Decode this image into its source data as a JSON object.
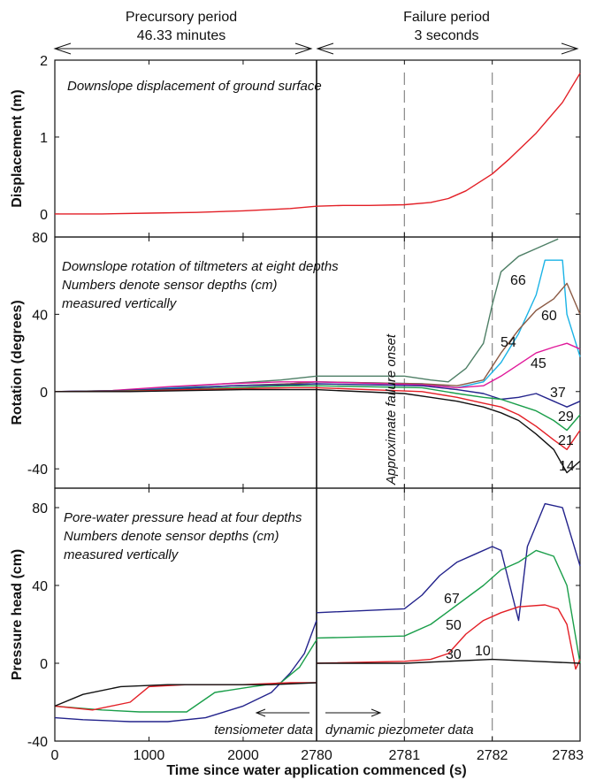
{
  "header": {
    "left_title": "Precursory period",
    "left_sub": "46.33 minutes",
    "right_title": "Failure period",
    "right_sub": "3 seconds"
  },
  "xlabel": "Time since water application commenced (s)",
  "colors": {
    "red": "#e31f26",
    "black": "#111111",
    "blue": "#23238c",
    "green": "#1a9e4a",
    "teal": "#4e7f66",
    "brown": "#8b5a44",
    "cyan": "#1ab3e6",
    "magenta": "#e0199a",
    "mid_blue": "#2c5fa8",
    "gray": "#888888",
    "grid": "#999999"
  },
  "chart_data": [
    {
      "type": "line",
      "title": "Downslope displacement of ground surface",
      "ylabel": "Displacement (m)",
      "ylim": [
        -0.3,
        2
      ],
      "yticks": [
        "2",
        "1",
        "0"
      ],
      "x_precursory": {
        "ticks": [
          "0",
          "1000",
          "2000",
          "2780"
        ],
        "range": [
          0,
          2780
        ]
      },
      "x_failure": {
        "ticks": [
          "2780",
          "2781",
          "2782",
          "2783"
        ],
        "range": [
          2780,
          2783
        ]
      },
      "series": [
        {
          "color": "red",
          "pre": [
            [
              0,
              0.0
            ],
            [
              500,
              0.0
            ],
            [
              1000,
              0.01
            ],
            [
              1500,
              0.02
            ],
            [
              2000,
              0.04
            ],
            [
              2500,
              0.07
            ],
            [
              2780,
              0.1
            ]
          ],
          "fail": [
            [
              2780,
              0.1
            ],
            [
              2780.3,
              0.11
            ],
            [
              2780.6,
              0.11
            ],
            [
              2781,
              0.12
            ],
            [
              2781.3,
              0.15
            ],
            [
              2781.5,
              0.2
            ],
            [
              2781.7,
              0.3
            ],
            [
              2782,
              0.52
            ],
            [
              2782.2,
              0.72
            ],
            [
              2782.5,
              1.05
            ],
            [
              2782.8,
              1.45
            ],
            [
              2783,
              1.83
            ]
          ]
        }
      ]
    },
    {
      "type": "line",
      "title_lines": [
        "Downslope rotation of tiltmeters at eight depths",
        "Numbers denote sensor depths (cm)",
        "measured vertically"
      ],
      "annotation": "Approximate failure onset",
      "ylabel": "Rotation (degrees)",
      "ylim": [
        -50,
        80
      ],
      "yticks": [
        "80",
        "40",
        "0",
        "-40"
      ],
      "x_precursory": {
        "ticks": [
          "0",
          "1000",
          "2000",
          "2780"
        ],
        "range": [
          0,
          2780
        ]
      },
      "x_failure": {
        "ticks": [
          "2780",
          "2781",
          "2782",
          "2783"
        ],
        "range": [
          2780,
          2783
        ]
      },
      "series": [
        {
          "name": "66",
          "color": "teal",
          "pre": [
            [
              0,
              0
            ],
            [
              600,
              0.5
            ],
            [
              1200,
              2
            ],
            [
              1800,
              4
            ],
            [
              2400,
              6
            ],
            [
              2780,
              8
            ]
          ],
          "fail": [
            [
              2780,
              8
            ],
            [
              2781,
              8
            ],
            [
              2781.3,
              6
            ],
            [
              2781.5,
              5
            ],
            [
              2781.7,
              12
            ],
            [
              2781.9,
              25
            ],
            [
              2782.0,
              45
            ],
            [
              2782.1,
              62
            ],
            [
              2782.3,
              70
            ],
            [
              2782.5,
              74
            ],
            [
              2782.7,
              78
            ],
            [
              2782.75,
              79
            ]
          ]
        },
        {
          "name": "54",
          "color": "cyan",
          "pre": [
            [
              0,
              0
            ],
            [
              700,
              0.5
            ],
            [
              1300,
              2
            ],
            [
              1900,
              3
            ],
            [
              2500,
              4
            ],
            [
              2780,
              5
            ]
          ],
          "fail": [
            [
              2780,
              5
            ],
            [
              2781.2,
              4
            ],
            [
              2781.6,
              2
            ],
            [
              2781.9,
              5
            ],
            [
              2782.1,
              15
            ],
            [
              2782.3,
              30
            ],
            [
              2782.5,
              50
            ],
            [
              2782.6,
              68
            ],
            [
              2782.8,
              68
            ],
            [
              2782.85,
              40
            ],
            [
              2783,
              18
            ]
          ]
        },
        {
          "name": "60",
          "color": "brown",
          "pre": [
            [
              0,
              0
            ],
            [
              700,
              0.3
            ],
            [
              1300,
              1.5
            ],
            [
              1900,
              3
            ],
            [
              2500,
              4
            ],
            [
              2780,
              5
            ]
          ],
          "fail": [
            [
              2780,
              5
            ],
            [
              2781.2,
              4
            ],
            [
              2781.6,
              3
            ],
            [
              2781.9,
              6
            ],
            [
              2782.1,
              20
            ],
            [
              2782.3,
              32
            ],
            [
              2782.5,
              42
            ],
            [
              2782.7,
              48
            ],
            [
              2782.85,
              56
            ],
            [
              2783,
              40
            ]
          ]
        },
        {
          "name": "45",
          "color": "magenta",
          "pre": [
            [
              0,
              0
            ],
            [
              600,
              0.5
            ],
            [
              1200,
              2.5
            ],
            [
              1800,
              4
            ],
            [
              2400,
              5
            ],
            [
              2780,
              5
            ]
          ],
          "fail": [
            [
              2780,
              5
            ],
            [
              2781.2,
              3.5
            ],
            [
              2781.6,
              2
            ],
            [
              2781.9,
              3
            ],
            [
              2782.1,
              8
            ],
            [
              2782.3,
              14
            ],
            [
              2782.5,
              20
            ],
            [
              2782.7,
              23
            ],
            [
              2782.85,
              25
            ],
            [
              2783,
              22
            ]
          ]
        },
        {
          "name": "37",
          "color": "blue",
          "pre": [
            [
              0,
              0
            ],
            [
              700,
              0.5
            ],
            [
              1300,
              1.5
            ],
            [
              1900,
              3
            ],
            [
              2500,
              3.5
            ],
            [
              2780,
              4
            ]
          ],
          "fail": [
            [
              2780,
              4
            ],
            [
              2781.2,
              3
            ],
            [
              2781.6,
              1
            ],
            [
              2781.9,
              -1
            ],
            [
              2782.1,
              -4
            ],
            [
              2782.3,
              -3
            ],
            [
              2782.5,
              -1
            ],
            [
              2782.7,
              -5
            ],
            [
              2782.85,
              -8
            ],
            [
              2783,
              -5
            ]
          ]
        },
        {
          "name": "29",
          "color": "green",
          "pre": [
            [
              0,
              0
            ],
            [
              700,
              0.3
            ],
            [
              1300,
              1
            ],
            [
              1900,
              2
            ],
            [
              2500,
              3
            ],
            [
              2780,
              3
            ]
          ],
          "fail": [
            [
              2780,
              3
            ],
            [
              2781.2,
              2
            ],
            [
              2781.6,
              -1
            ],
            [
              2781.9,
              -3
            ],
            [
              2782.1,
              -4
            ],
            [
              2782.3,
              -7
            ],
            [
              2782.5,
              -10
            ],
            [
              2782.7,
              -15
            ],
            [
              2782.85,
              -20
            ],
            [
              2783,
              -12
            ]
          ]
        },
        {
          "name": "21",
          "color": "red",
          "pre": [
            [
              0,
              0
            ],
            [
              800,
              0.2
            ],
            [
              1400,
              1
            ],
            [
              2000,
              1.5
            ],
            [
              2500,
              2
            ],
            [
              2780,
              2
            ]
          ],
          "fail": [
            [
              2780,
              2
            ],
            [
              2781.2,
              0
            ],
            [
              2781.6,
              -3
            ],
            [
              2781.9,
              -6
            ],
            [
              2782.1,
              -8
            ],
            [
              2782.3,
              -12
            ],
            [
              2782.5,
              -18
            ],
            [
              2782.7,
              -25
            ],
            [
              2782.85,
              -30
            ],
            [
              2783,
              -20
            ]
          ]
        },
        {
          "name": "14",
          "color": "black",
          "pre": [
            [
              0,
              0
            ],
            [
              800,
              0
            ],
            [
              1400,
              0.5
            ],
            [
              2000,
              1
            ],
            [
              2500,
              1
            ],
            [
              2780,
              1
            ]
          ],
          "fail": [
            [
              2780,
              1
            ],
            [
              2781,
              -1
            ],
            [
              2781.3,
              -3
            ],
            [
              2781.6,
              -5
            ],
            [
              2781.9,
              -8
            ],
            [
              2782.1,
              -11
            ],
            [
              2782.3,
              -15
            ],
            [
              2782.5,
              -22
            ],
            [
              2782.7,
              -30
            ],
            [
              2782.85,
              -42
            ],
            [
              2783,
              -36
            ]
          ]
        }
      ]
    },
    {
      "type": "line",
      "title_lines": [
        "Pore-water pressure head at four depths",
        "Numbers denote sensor depths (cm)",
        "measured vertically"
      ],
      "ylabel": "Pressure head (cm)",
      "ylim": [
        -40,
        90
      ],
      "yticks": [
        "80",
        "40",
        "0",
        "-40"
      ],
      "left_note": "tensiometer data",
      "right_note": "dynamic piezometer data",
      "x_precursory": {
        "ticks": [
          "0",
          "1000",
          "2000",
          "2780"
        ],
        "range": [
          0,
          2780
        ]
      },
      "x_failure": {
        "ticks": [
          "2780",
          "2781",
          "2782",
          "2783"
        ],
        "range": [
          2780,
          2783
        ]
      },
      "series": [
        {
          "name": "67",
          "color": "blue",
          "pre": [
            [
              0,
              -28
            ],
            [
              300,
              -29
            ],
            [
              800,
              -30
            ],
            [
              1200,
              -30
            ],
            [
              1600,
              -28
            ],
            [
              2000,
              -22
            ],
            [
              2300,
              -15
            ],
            [
              2500,
              -5
            ],
            [
              2650,
              5
            ],
            [
              2780,
              22
            ]
          ],
          "fail": [
            [
              2780,
              26
            ],
            [
              2781.0,
              28
            ],
            [
              2781.2,
              35
            ],
            [
              2781.4,
              45
            ],
            [
              2781.6,
              52
            ],
            [
              2781.8,
              56
            ],
            [
              2782.0,
              60
            ],
            [
              2782.1,
              58
            ],
            [
              2782.2,
              40
            ],
            [
              2782.3,
              22
            ],
            [
              2782.4,
              60
            ],
            [
              2782.6,
              82
            ],
            [
              2782.8,
              80
            ],
            [
              2783,
              50
            ]
          ]
        },
        {
          "name": "50",
          "color": "green",
          "pre": [
            [
              0,
              -22
            ],
            [
              500,
              -24
            ],
            [
              900,
              -25
            ],
            [
              1400,
              -25
            ],
            [
              1700,
              -15
            ],
            [
              2100,
              -12
            ],
            [
              2400,
              -10
            ],
            [
              2600,
              -2
            ],
            [
              2780,
              12
            ]
          ],
          "fail": [
            [
              2780,
              13
            ],
            [
              2781.0,
              14
            ],
            [
              2781.3,
              20
            ],
            [
              2781.6,
              30
            ],
            [
              2781.9,
              40
            ],
            [
              2782.1,
              48
            ],
            [
              2782.3,
              52
            ],
            [
              2782.5,
              58
            ],
            [
              2782.7,
              55
            ],
            [
              2782.85,
              40
            ],
            [
              2783,
              0
            ]
          ]
        },
        {
          "name": "30",
          "color": "red",
          "pre": [
            [
              0,
              -22
            ],
            [
              400,
              -24
            ],
            [
              800,
              -20
            ],
            [
              1000,
              -12
            ],
            [
              1400,
              -11
            ],
            [
              2000,
              -11
            ],
            [
              2500,
              -10
            ],
            [
              2780,
              -10
            ]
          ],
          "fail": [
            [
              2780,
              0
            ],
            [
              2781.0,
              1
            ],
            [
              2781.3,
              2
            ],
            [
              2781.5,
              5
            ],
            [
              2781.7,
              15
            ],
            [
              2781.9,
              22
            ],
            [
              2782.1,
              26
            ],
            [
              2782.3,
              29
            ],
            [
              2782.6,
              30
            ],
            [
              2782.75,
              28
            ],
            [
              2782.85,
              20
            ],
            [
              2782.95,
              -3
            ],
            [
              2783,
              2
            ]
          ]
        },
        {
          "name": "10",
          "color": "black",
          "pre": [
            [
              0,
              -22
            ],
            [
              300,
              -16
            ],
            [
              700,
              -12
            ],
            [
              1200,
              -11
            ],
            [
              1800,
              -11
            ],
            [
              2300,
              -11
            ],
            [
              2780,
              -10
            ]
          ],
          "fail": [
            [
              2780,
              0
            ],
            [
              2781,
              0
            ],
            [
              2781.5,
              1
            ],
            [
              2782,
              2
            ],
            [
              2782.5,
              1
            ],
            [
              2783,
              0
            ]
          ]
        }
      ]
    }
  ]
}
